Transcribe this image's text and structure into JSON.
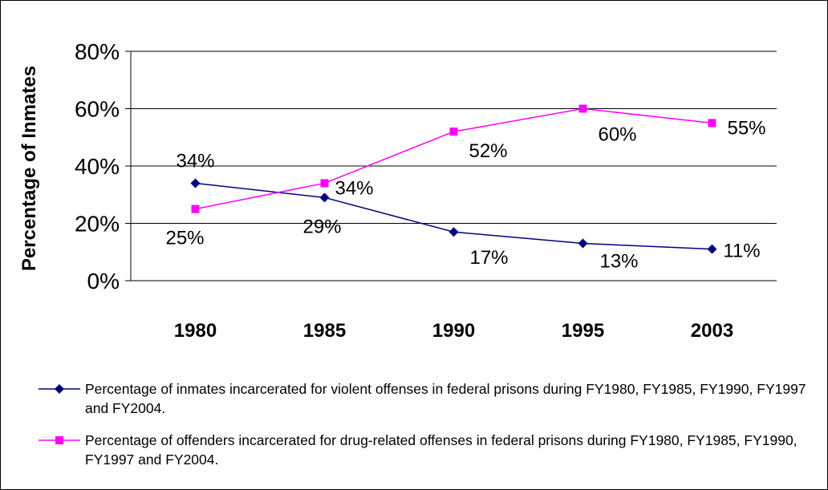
{
  "chart_data": {
    "type": "line",
    "categories": [
      "1980",
      "1985",
      "1990",
      "1995",
      "2003"
    ],
    "ylabel": "Percentage of Inmates",
    "ylim": [
      0,
      80
    ],
    "yticks": [
      "0%",
      "20%",
      "40%",
      "60%",
      "80%"
    ],
    "grid": true,
    "legend_position": "bottom",
    "series": [
      {
        "name": "Percentage of inmates incarcerated for violent offenses in federal prisons during FY1980, FY1985, FY1990, FY1997 and FY2004.",
        "values": [
          34,
          29,
          17,
          13,
          11
        ],
        "labels": [
          "34%",
          "29%",
          "17%",
          "13%",
          "11%"
        ],
        "color": "#000080",
        "marker": "diamond"
      },
      {
        "name": "Percentage of offenders incarcerated for drug-related offenses in federal prisons during FY1980, FY1985, FY1990, FY1997 and FY2004.",
        "values": [
          25,
          34,
          52,
          60,
          55
        ],
        "labels": [
          "25%",
          "34%",
          "52%",
          "60%",
          "55%"
        ],
        "color": "#FF00FF",
        "marker": "square"
      }
    ]
  }
}
